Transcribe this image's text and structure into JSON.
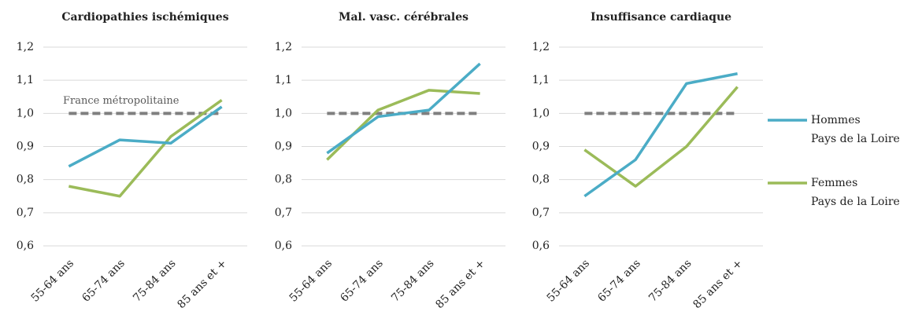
{
  "chart_data": [
    {
      "type": "line",
      "title": "Cardiopathies ischémiques",
      "categories": [
        "55-64 ans",
        "65-74 ans",
        "75-84 ans",
        "85 ans et +"
      ],
      "series": [
        {
          "name": "Hommes\nPays de la Loire",
          "color": "#4bacc6",
          "values": [
            0.84,
            0.92,
            0.91,
            1.02
          ]
        },
        {
          "name": "Femmes\nPays de la Loire",
          "color": "#9bbb59",
          "values": [
            0.78,
            0.75,
            0.93,
            1.04
          ]
        },
        {
          "name": "France métropolitaine",
          "color": "#7f7f7f",
          "dashed": true,
          "values": [
            1.0,
            1.0,
            1.0,
            1.0
          ]
        }
      ],
      "ylim": [
        0.6,
        1.2
      ],
      "yticks": [
        {
          "value": 0.6,
          "label": "0,6"
        },
        {
          "value": 0.7,
          "label": "0,7"
        },
        {
          "value": 0.8,
          "label": "0,8"
        },
        {
          "value": 0.9,
          "label": "0,9"
        },
        {
          "value": 1.0,
          "label": "1,0"
        },
        {
          "value": 1.1,
          "label": "1,1"
        },
        {
          "value": 1.2,
          "label": "1,2"
        }
      ],
      "grid": true
    },
    {
      "type": "line",
      "title": "Mal. vasc. cérébrales",
      "categories": [
        "55-64 ans",
        "65-74 ans",
        "75-84 ans",
        "85 ans et +"
      ],
      "series": [
        {
          "color": "#4bacc6",
          "values": [
            0.88,
            0.99,
            1.01,
            1.15
          ]
        },
        {
          "color": "#9bbb59",
          "values": [
            0.86,
            1.01,
            1.07,
            1.06
          ]
        },
        {
          "color": "#7f7f7f",
          "dashed": true,
          "values": [
            1.0,
            1.0,
            1.0,
            1.0
          ]
        }
      ],
      "ylim": [
        0.6,
        1.2
      ],
      "yticks": [
        {
          "value": 0.6,
          "label": "0,6"
        },
        {
          "value": 0.7,
          "label": "0,7"
        },
        {
          "value": 0.8,
          "label": "0,8"
        },
        {
          "value": 0.9,
          "label": "0,9"
        },
        {
          "value": 1.0,
          "label": "1,0"
        },
        {
          "value": 1.1,
          "label": "1,1"
        },
        {
          "value": 1.2,
          "label": "1,2"
        }
      ],
      "grid": true
    },
    {
      "type": "line",
      "title": "Insuffisance cardiaque",
      "categories": [
        "55-64 ans",
        "65-74 ans",
        "75-84 ans",
        "85 ans et +"
      ],
      "series": [
        {
          "color": "#4bacc6",
          "values": [
            0.75,
            0.86,
            1.09,
            1.12
          ]
        },
        {
          "color": "#9bbb59",
          "values": [
            0.89,
            0.78,
            0.9,
            1.08
          ]
        },
        {
          "color": "#7f7f7f",
          "dashed": true,
          "values": [
            1.0,
            1.0,
            1.0,
            1.0
          ]
        }
      ],
      "ylim": [
        0.6,
        1.2
      ],
      "yticks": [
        {
          "value": 0.6,
          "label": "0,6"
        },
        {
          "value": 0.7,
          "label": "0,7"
        },
        {
          "value": 0.8,
          "label": "0,8"
        },
        {
          "value": 0.9,
          "label": "0,9"
        },
        {
          "value": 1.0,
          "label": "1,0"
        },
        {
          "value": 1.1,
          "label": "1,1"
        },
        {
          "value": 1.2,
          "label": "1,2"
        }
      ],
      "grid": true
    }
  ]
}
